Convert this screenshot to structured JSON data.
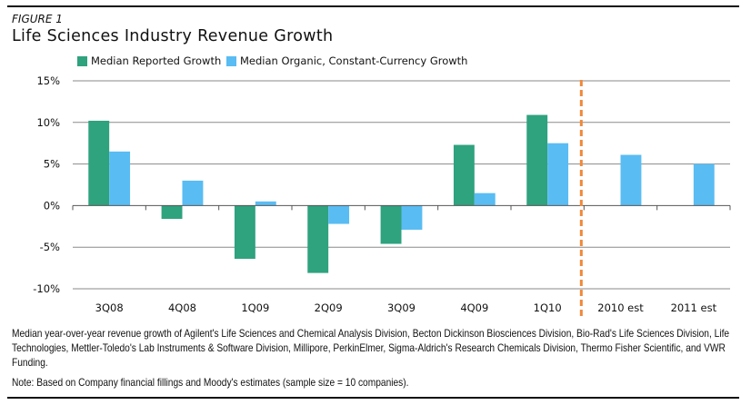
{
  "figure_label": "FIGURE 1",
  "chart_data": {
    "type": "bar",
    "title": "Life Sciences Industry Revenue Growth",
    "categories": [
      "3Q08",
      "4Q08",
      "1Q09",
      "2Q09",
      "3Q09",
      "4Q09",
      "1Q10",
      "2010 est",
      "2011 est"
    ],
    "series": [
      {
        "name": "Median Reported Growth",
        "color": "#2FA27E",
        "values": [
          10.2,
          -1.6,
          -6.4,
          -8.1,
          -4.6,
          7.3,
          10.9,
          null,
          null
        ]
      },
      {
        "name": "Median Organic, Constant-Currency Growth",
        "color": "#59BCF3",
        "values": [
          6.5,
          3.0,
          0.5,
          -2.2,
          -2.9,
          1.5,
          7.5,
          6.1,
          5.0
        ]
      }
    ],
    "ylim": [
      -10,
      15
    ],
    "yticks": [
      15,
      10,
      5,
      0,
      -5,
      -10
    ],
    "ytick_labels": [
      "15%",
      "10%",
      "5%",
      "0%",
      "-5%",
      "-10%"
    ],
    "grid": true,
    "legend": "top",
    "divider": {
      "between": [
        "1Q10",
        "2010 est"
      ],
      "style": "dashed",
      "color": "#F0893B"
    }
  },
  "footnote": "Median year-over-year revenue growth of Agilent's Life Sciences and Chemical Analysis Division, Becton Dickinson Biosciences Division, Bio-Rad's Life Sciences Division, Life Technologies, Mettler-Toledo's Lab Instruments & Software Division, Millipore, PerkinElmer, Sigma-Aldrich's Research Chemicals Division, Thermo Fisher Scientific, and VWR Funding.",
  "note": "Note: Based on Company financial fillings and Moody's estimates (sample size = 10 companies)."
}
